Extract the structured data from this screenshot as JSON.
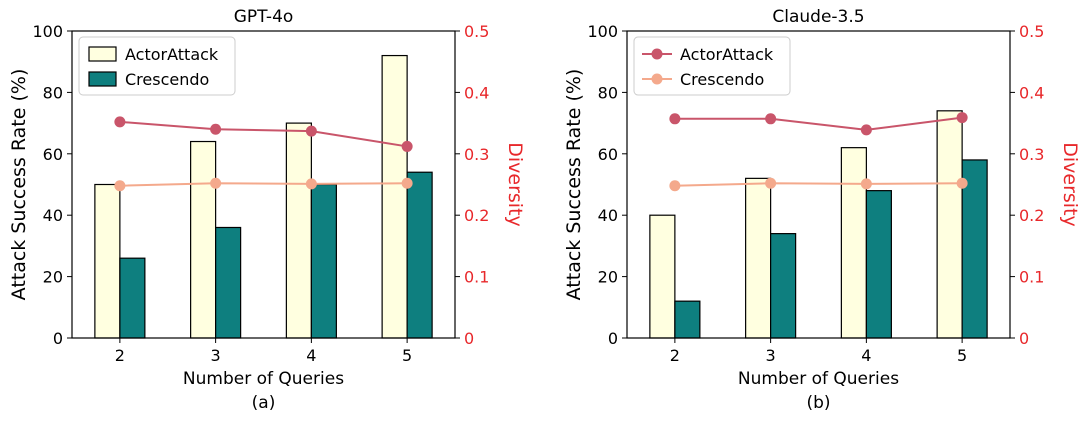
{
  "chart_data": [
    {
      "type": "bar",
      "title": "GPT-4o",
      "caption": "(a)",
      "xlabel": "Number of Queries",
      "ylabel": "Attack Success Rate (%)",
      "y2label": "Diversity",
      "categories": [
        "2",
        "3",
        "4",
        "5"
      ],
      "ylim": [
        0,
        100
      ],
      "yticks": [
        "0",
        "20",
        "40",
        "60",
        "80",
        "100"
      ],
      "y2lim": [
        0,
        0.5
      ],
      "y2ticks": [
        "0",
        "0.1",
        "0.2",
        "0.3",
        "0.4",
        "0.5"
      ],
      "legend": "top-left",
      "legend_style": "bars",
      "bar_series": [
        {
          "name": "ActorAttack",
          "values": [
            50,
            64,
            70,
            92
          ],
          "color": "#ffffe0"
        },
        {
          "name": "Crescendo",
          "values": [
            26,
            36,
            50,
            54
          ],
          "color": "#0e7f7f"
        }
      ],
      "line_series": [
        {
          "name": "ActorAttack",
          "values": [
            0.352,
            0.34,
            0.337,
            0.312
          ],
          "color": "#c9556a"
        },
        {
          "name": "Crescendo",
          "values": [
            0.248,
            0.252,
            0.251,
            0.252
          ],
          "color": "#f4a98c"
        }
      ]
    },
    {
      "type": "bar",
      "title": "Claude-3.5",
      "caption": "(b)",
      "xlabel": "Number of Queries",
      "ylabel": "Attack Success Rate (%)",
      "y2label": "Diversity",
      "categories": [
        "2",
        "3",
        "4",
        "5"
      ],
      "ylim": [
        0,
        100
      ],
      "yticks": [
        "0",
        "20",
        "40",
        "60",
        "80",
        "100"
      ],
      "y2lim": [
        0,
        0.5
      ],
      "y2ticks": [
        "0",
        "0.1",
        "0.2",
        "0.3",
        "0.4",
        "0.5"
      ],
      "legend": "top-left",
      "legend_style": "lines",
      "bar_series": [
        {
          "name": "ActorAttack",
          "values": [
            40,
            52,
            62,
            74
          ],
          "color": "#ffffe0"
        },
        {
          "name": "Crescendo",
          "values": [
            12,
            34,
            48,
            58
          ],
          "color": "#0e7f7f"
        }
      ],
      "line_series": [
        {
          "name": "ActorAttack",
          "values": [
            0.357,
            0.357,
            0.339,
            0.359
          ],
          "color": "#c9556a"
        },
        {
          "name": "Crescendo",
          "values": [
            0.248,
            0.252,
            0.251,
            0.252
          ],
          "color": "#f4a98c"
        }
      ]
    }
  ]
}
